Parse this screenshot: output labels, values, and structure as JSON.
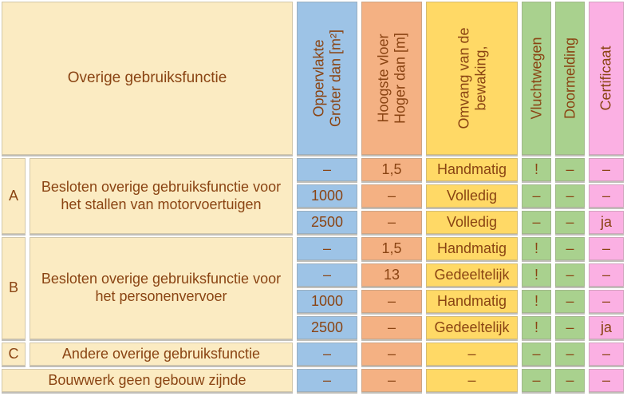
{
  "table": {
    "corner_header": "Overige gebruiksfunctie",
    "columns": [
      {
        "id": "oppervlakte",
        "label": "Oppervlakte\nGroter dan [m²]",
        "color": "#9DC3E6"
      },
      {
        "id": "hoogste-vloer",
        "label": "Hoogste vloer\nHoger dan [m]",
        "color": "#F4B183"
      },
      {
        "id": "omvang-bewaking",
        "label": "Omvang van de\nbewaking,",
        "color": "#FFD966"
      },
      {
        "id": "vluchtwegen",
        "label": "Vluchtwegen",
        "color": "#A9D18E"
      },
      {
        "id": "doormelding",
        "label": "Doormelding",
        "color": "#A9D18E"
      },
      {
        "id": "certificaat",
        "label": "Certificaat",
        "color": "#FBB0E3"
      }
    ],
    "sections": [
      {
        "letter": "A",
        "description": "Besloten overige gebruiksfunctie voor het stallen van motorvoertuigen",
        "rows": [
          [
            "–",
            "1,5",
            "Handmatig",
            "!",
            "–",
            "–"
          ],
          [
            "1000",
            "–",
            "Volledig",
            "–",
            "–",
            "–"
          ],
          [
            "2500",
            "–",
            "Volledig",
            "–",
            "–",
            "ja"
          ]
        ]
      },
      {
        "letter": "B",
        "description": "Besloten overige gebruiksfunctie voor het personenvervoer",
        "rows": [
          [
            "–",
            "1,5",
            "Handmatig",
            "!",
            "–",
            "–"
          ],
          [
            "–",
            "13",
            "Gedeeltelijk",
            "!",
            "–",
            "–"
          ],
          [
            "1000",
            "–",
            "Handmatig",
            "!",
            "–",
            "–"
          ],
          [
            "2500",
            "–",
            "Gedeeltelijk",
            "!",
            "–",
            "ja"
          ]
        ]
      },
      {
        "letter": "C",
        "description": "Andere overige gebruiksfunctie",
        "rows": [
          [
            "–",
            "–",
            "–",
            "–",
            "–",
            "–"
          ]
        ]
      }
    ],
    "footer_row": {
      "description": "Bouwwerk geen gebouw zijnde",
      "values": [
        "–",
        "–",
        "–",
        "–",
        "–",
        "–"
      ]
    }
  },
  "colors": {
    "cream_bg": "#FBEBC2",
    "blue": "#9DC3E6",
    "orange": "#F4B183",
    "yellow": "#FFD966",
    "green": "#A9D18E",
    "pink": "#FBB0E3",
    "text_brown": "#8A4413",
    "cell_shadow": "#A09C94"
  }
}
